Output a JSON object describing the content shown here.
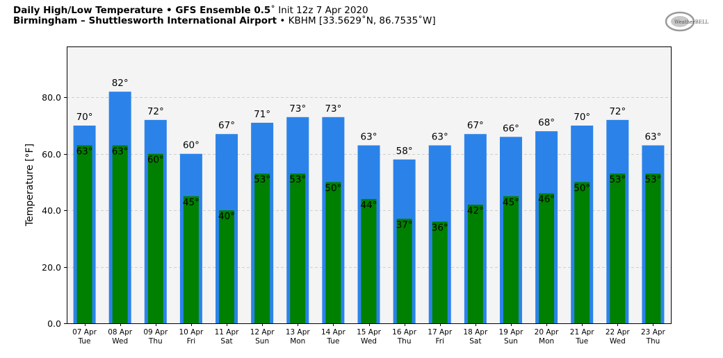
{
  "header": {
    "line1_bold": "Daily High/Low Temperature • GFS Ensemble 0.5",
    "line1_rest": "˚ Init 12z 7 Apr 2020",
    "line2_bold": "Birmingham – Shuttlesworth International Airport",
    "line2_rest": " • KBHM [33.5629˚N, 86.7535˚W]"
  },
  "logo": {
    "text": "WeatherBELL",
    "icon": "weatherbell-logo"
  },
  "chart_data": {
    "type": "bar",
    "title": "Daily High/Low Temperature • GFS Ensemble 0.5˚ Init 12z 7 Apr 2020",
    "ylabel": "Temperature [°F]",
    "ylim": [
      0,
      98
    ],
    "yticks": [
      0,
      20,
      40,
      60,
      80
    ],
    "ytick_labels": [
      "0.0",
      "20.0",
      "40.0",
      "60.0",
      "80.0"
    ],
    "grid": true,
    "categories": [
      "07 Apr",
      "08 Apr",
      "09 Apr",
      "10 Apr",
      "11 Apr",
      "12 Apr",
      "13 Apr",
      "14 Apr",
      "15 Apr",
      "16 Apr",
      "17 Apr",
      "18 Apr",
      "19 Apr",
      "20 Apr",
      "21 Apr",
      "22 Apr",
      "23 Apr"
    ],
    "weekdays": [
      "Tue",
      "Wed",
      "Thu",
      "Fri",
      "Sat",
      "Sun",
      "Mon",
      "Tue",
      "Wed",
      "Thu",
      "Fri",
      "Sat",
      "Sun",
      "Mon",
      "Tue",
      "Wed",
      "Thu"
    ],
    "series": [
      {
        "color": "#2b83ea",
        "values": [
          70,
          82,
          72,
          60,
          67,
          71,
          73,
          73,
          63,
          58,
          63,
          67,
          66,
          68,
          70,
          72,
          63
        ]
      },
      {
        "color": "#008000",
        "values": [
          63,
          63,
          60,
          45,
          40,
          53,
          53,
          50,
          44,
          37,
          36,
          42,
          45,
          46,
          50,
          53,
          53
        ]
      }
    ],
    "unit_suffix": "°",
    "background": "#f4f4f4"
  }
}
